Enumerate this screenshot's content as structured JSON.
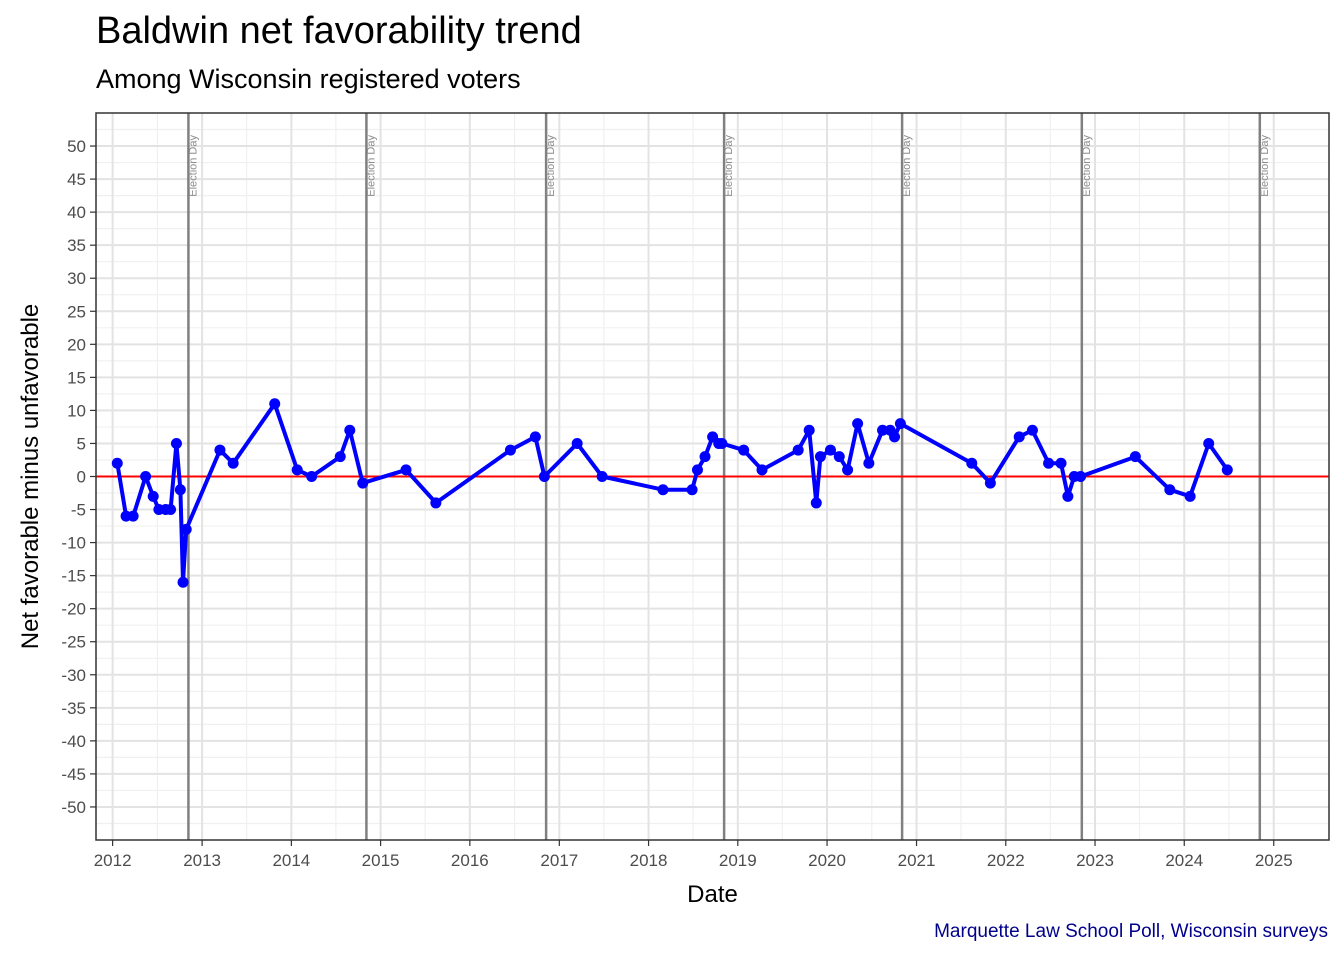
{
  "chart_data": {
    "type": "line",
    "title": "Baldwin net favorability trend",
    "subtitle": "Among Wisconsin registered voters",
    "caption": "Marquette Law School Poll, Wisconsin surveys",
    "xlabel": "Date",
    "ylabel": "Net favorable minus unfavorable",
    "x_is_date": true,
    "xlim": [
      "2011-10-25",
      "2025-08-15"
    ],
    "ylim": [
      -55,
      55
    ],
    "x_ticks": [
      "2012",
      "2013",
      "2014",
      "2015",
      "2016",
      "2017",
      "2018",
      "2019",
      "2020",
      "2021",
      "2022",
      "2023",
      "2024",
      "2025"
    ],
    "y_ticks": [
      -50,
      -45,
      -40,
      -35,
      -30,
      -25,
      -20,
      -15,
      -10,
      -5,
      0,
      5,
      10,
      15,
      20,
      25,
      30,
      35,
      40,
      45,
      50
    ],
    "grid": true,
    "reference_line": {
      "y": 0,
      "color": "#ff0000"
    },
    "vertical_lines": {
      "label": "Election Day",
      "color": "#808080",
      "dates": [
        "2012-11-06",
        "2014-11-04",
        "2016-11-08",
        "2018-11-06",
        "2020-11-03",
        "2022-11-08",
        "2024-11-05"
      ]
    },
    "series": [
      {
        "color": "#0000ff",
        "points": [
          [
            "2012-01-20",
            2
          ],
          [
            "2012-02-25",
            -6
          ],
          [
            "2012-03-25",
            -6
          ],
          [
            "2012-05-15",
            0
          ],
          [
            "2012-06-15",
            -3
          ],
          [
            "2012-07-08",
            -5
          ],
          [
            "2012-08-05",
            -5
          ],
          [
            "2012-08-25",
            -5
          ],
          [
            "2012-09-18",
            5
          ],
          [
            "2012-10-04",
            -2
          ],
          [
            "2012-10-15",
            -16
          ],
          [
            "2012-10-28",
            -8
          ],
          [
            "2013-03-15",
            4
          ],
          [
            "2013-05-08",
            2
          ],
          [
            "2013-10-25",
            11
          ],
          [
            "2014-01-25",
            1
          ],
          [
            "2014-03-25",
            0
          ],
          [
            "2014-07-20",
            3
          ],
          [
            "2014-08-28",
            7
          ],
          [
            "2014-10-20",
            -1
          ],
          [
            "2015-04-15",
            1
          ],
          [
            "2015-08-15",
            -4
          ],
          [
            "2016-06-15",
            4
          ],
          [
            "2016-09-25",
            6
          ],
          [
            "2016-11-01",
            0
          ],
          [
            "2017-03-15",
            5
          ],
          [
            "2017-06-25",
            0
          ],
          [
            "2018-03-01",
            -2
          ],
          [
            "2018-06-28",
            -2
          ],
          [
            "2018-07-20",
            1
          ],
          [
            "2018-08-20",
            3
          ],
          [
            "2018-09-20",
            6
          ],
          [
            "2018-10-15",
            5
          ],
          [
            "2018-10-28",
            5
          ],
          [
            "2019-01-25",
            4
          ],
          [
            "2019-04-10",
            1
          ],
          [
            "2019-09-05",
            4
          ],
          [
            "2019-10-20",
            7
          ],
          [
            "2019-11-18",
            -4
          ],
          [
            "2019-12-05",
            3
          ],
          [
            "2020-01-15",
            4
          ],
          [
            "2020-02-20",
            3
          ],
          [
            "2020-03-25",
            1
          ],
          [
            "2020-05-05",
            8
          ],
          [
            "2020-06-20",
            2
          ],
          [
            "2020-08-15",
            7
          ],
          [
            "2020-09-15",
            7
          ],
          [
            "2020-10-03",
            6
          ],
          [
            "2020-10-27",
            8
          ],
          [
            "2021-08-15",
            2
          ],
          [
            "2021-10-30",
            -1
          ],
          [
            "2022-02-25",
            6
          ],
          [
            "2022-04-20",
            7
          ],
          [
            "2022-06-25",
            2
          ],
          [
            "2022-08-15",
            2
          ],
          [
            "2022-09-12",
            -3
          ],
          [
            "2022-10-08",
            0
          ],
          [
            "2022-11-03",
            0
          ],
          [
            "2023-06-15",
            3
          ],
          [
            "2023-11-03",
            -2
          ],
          [
            "2024-01-25",
            -3
          ],
          [
            "2024-04-10",
            5
          ],
          [
            "2024-06-25",
            1
          ]
        ]
      }
    ]
  }
}
